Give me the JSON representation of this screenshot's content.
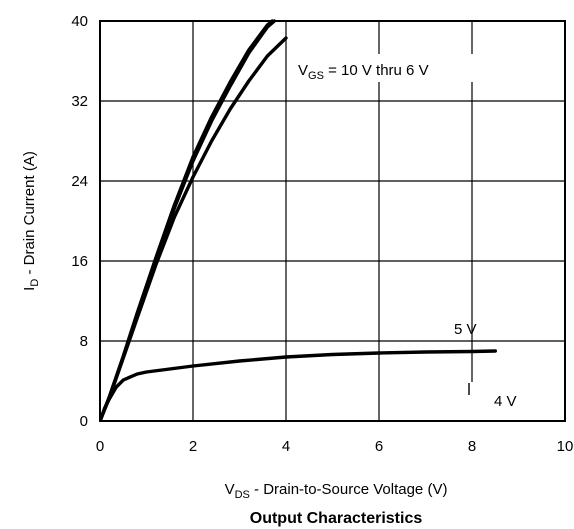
{
  "chart_data": {
    "type": "line",
    "title": "Output Characteristics",
    "xlabel": {
      "main": "V",
      "sub": "DS",
      "rest": " - Drain-to-Source Voltage (V)"
    },
    "ylabel": {
      "main": "I",
      "sub": "D",
      "rest": " - Drain Current (A)"
    },
    "xlim": [
      0,
      10
    ],
    "ylim": [
      0,
      40
    ],
    "xticks": [
      0,
      2,
      4,
      6,
      8,
      10
    ],
    "yticks": [
      0,
      8,
      16,
      24,
      32,
      40
    ],
    "grid": true,
    "series": [
      {
        "values": [
          [
            0,
            0
          ],
          [
            0.2,
            2.4
          ],
          [
            0.5,
            6.5
          ],
          [
            0.8,
            10.8
          ],
          [
            1.2,
            16.3
          ],
          [
            1.6,
            21.6
          ],
          [
            2.0,
            26.4
          ],
          [
            2.4,
            30.4
          ],
          [
            2.8,
            33.9
          ],
          [
            3.2,
            37.1
          ],
          [
            3.6,
            39.6
          ],
          [
            3.7,
            40
          ]
        ]
      },
      {
        "values": [
          [
            0,
            0
          ],
          [
            0.2,
            2.4
          ],
          [
            0.5,
            6.4
          ],
          [
            0.8,
            10.6
          ],
          [
            1.2,
            16.1
          ],
          [
            1.6,
            21.3
          ],
          [
            2.0,
            26.0
          ],
          [
            2.4,
            30.0
          ],
          [
            2.8,
            33.5
          ],
          [
            3.2,
            36.8
          ],
          [
            3.6,
            39.4
          ],
          [
            3.75,
            40
          ]
        ]
      },
      {
        "values": [
          [
            0,
            0
          ],
          [
            0.2,
            2.3
          ],
          [
            0.5,
            6.3
          ],
          [
            0.8,
            10.3
          ],
          [
            1.2,
            15.6
          ],
          [
            1.6,
            20.4
          ],
          [
            2.0,
            24.4
          ],
          [
            2.4,
            28.0
          ],
          [
            2.8,
            31.2
          ],
          [
            3.2,
            34.0
          ],
          [
            3.6,
            36.5
          ],
          [
            4.0,
            38.3
          ]
        ]
      },
      {
        "values": [
          [
            0,
            0
          ],
          [
            0.1,
            1.3
          ],
          [
            0.2,
            2.2
          ],
          [
            0.35,
            3.4
          ],
          [
            0.5,
            4.1
          ],
          [
            0.8,
            4.7
          ],
          [
            1.0,
            4.9
          ],
          [
            2.0,
            5.5
          ],
          [
            3.0,
            6.0
          ],
          [
            4.0,
            6.4
          ],
          [
            5.0,
            6.65
          ],
          [
            6.0,
            6.8
          ],
          [
            7.0,
            6.9
          ],
          [
            8.0,
            6.95
          ],
          [
            8.5,
            7.0
          ]
        ]
      }
    ],
    "annotations": [
      {
        "id": "vgs",
        "main": "V",
        "sub": "GS",
        "rest": " = 10 V thru 6 V"
      },
      {
        "id": "v5",
        "text": "5 V"
      },
      {
        "id": "v4",
        "text": "4 V"
      }
    ]
  }
}
